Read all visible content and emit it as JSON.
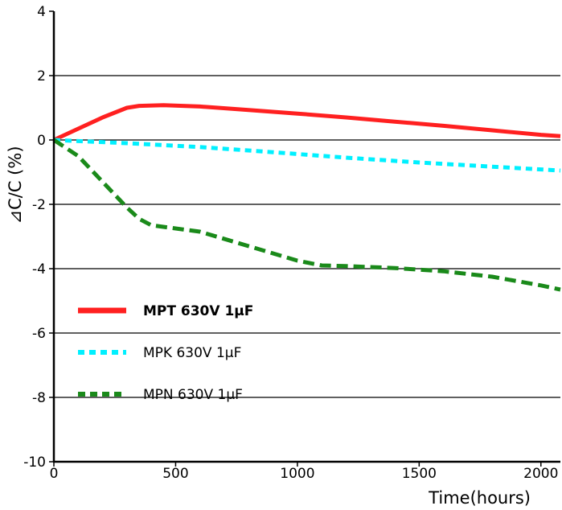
{
  "chart_data": {
    "type": "line",
    "title": "",
    "xlabel": "Time(hours)",
    "ylabel": "⊿C/C (%)",
    "xlim": [
      0,
      2080
    ],
    "ylim": [
      -10,
      4
    ],
    "x_ticks": [
      {
        "value": 0,
        "label": "0"
      },
      {
        "value": 500,
        "label": "500"
      },
      {
        "value": 1000,
        "label": "1000"
      },
      {
        "value": 1500,
        "label": "1500"
      },
      {
        "value": 2000,
        "label": "2000"
      }
    ],
    "y_ticks": [
      {
        "value": 4,
        "label": "4"
      },
      {
        "value": 2,
        "label": "2"
      },
      {
        "value": 0,
        "label": "0"
      },
      {
        "value": -2,
        "label": "-2"
      },
      {
        "value": -4,
        "label": "-4"
      },
      {
        "value": -6,
        "label": "-6"
      },
      {
        "value": -8,
        "label": "-8"
      },
      {
        "value": -10,
        "label": "-10"
      }
    ],
    "grid": {
      "horizontal": true,
      "vertical": false
    },
    "legend": {
      "position": "lower-left"
    },
    "series": [
      {
        "name": "MPT 630V 1µF",
        "color": "#ff2020",
        "style": "solid",
        "bold_label": true,
        "x": [
          0,
          100,
          200,
          300,
          350,
          450,
          600,
          800,
          1000,
          1200,
          1400,
          1600,
          1800,
          2000,
          2080
        ],
        "y": [
          0,
          0.35,
          0.7,
          1.0,
          1.06,
          1.08,
          1.04,
          0.93,
          0.82,
          0.7,
          0.57,
          0.44,
          0.3,
          0.16,
          0.12
        ]
      },
      {
        "name": "MPK 630V 1µF",
        "color": "#00f0ff",
        "style": "dotted",
        "bold_label": false,
        "x": [
          0,
          300,
          600,
          900,
          1200,
          1500,
          1800,
          2080
        ],
        "y": [
          0,
          -0.1,
          -0.22,
          -0.38,
          -0.55,
          -0.7,
          -0.83,
          -0.95
        ]
      },
      {
        "name": "MPN 630V 1µF",
        "color": "#1a8a1a",
        "style": "dashed",
        "bold_label": false,
        "x": [
          0,
          100,
          200,
          300,
          350,
          400,
          600,
          800,
          1000,
          1100,
          1200,
          1400,
          1600,
          1800,
          2000,
          2080
        ],
        "y": [
          0,
          -0.5,
          -1.3,
          -2.1,
          -2.45,
          -2.65,
          -2.85,
          -3.3,
          -3.75,
          -3.9,
          -3.92,
          -3.98,
          -4.08,
          -4.25,
          -4.52,
          -4.65
        ]
      }
    ]
  }
}
